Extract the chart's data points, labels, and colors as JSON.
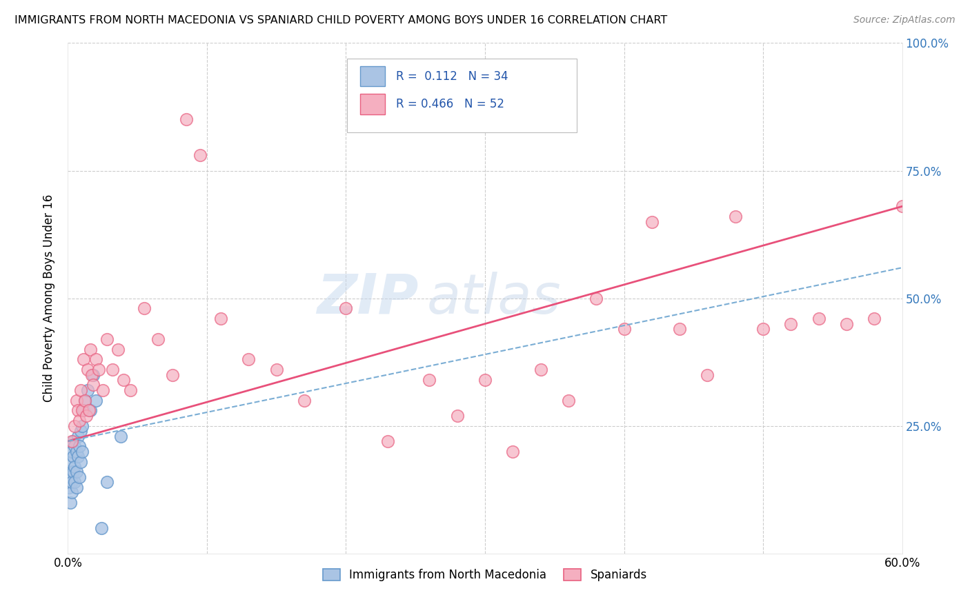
{
  "title": "IMMIGRANTS FROM NORTH MACEDONIA VS SPANIARD CHILD POVERTY AMONG BOYS UNDER 16 CORRELATION CHART",
  "source": "Source: ZipAtlas.com",
  "ylabel": "Child Poverty Among Boys Under 16",
  "xlim": [
    0.0,
    0.6
  ],
  "ylim": [
    0.0,
    1.0
  ],
  "xtick_positions": [
    0.0,
    0.1,
    0.2,
    0.3,
    0.4,
    0.5,
    0.6
  ],
  "xticklabels": [
    "0.0%",
    "",
    "",
    "",
    "",
    "",
    "60.0%"
  ],
  "ytick_positions": [
    0.0,
    0.25,
    0.5,
    0.75,
    1.0
  ],
  "yticklabels_right": [
    "",
    "25.0%",
    "50.0%",
    "75.0%",
    "100.0%"
  ],
  "r1": 0.112,
  "n1": 34,
  "r2": 0.466,
  "n2": 52,
  "color1_fill": "#aac4e4",
  "color1_edge": "#6699cc",
  "color2_fill": "#f5afc0",
  "color2_edge": "#e86080",
  "line1_color": "#7aadd4",
  "line2_color": "#e8507a",
  "watermark": "ZIPatlas",
  "legend_label1": "Immigrants from North Macedonia",
  "legend_label2": "Spaniards",
  "scatter1_x": [
    0.001,
    0.001,
    0.002,
    0.002,
    0.002,
    0.003,
    0.003,
    0.003,
    0.004,
    0.004,
    0.004,
    0.005,
    0.005,
    0.005,
    0.006,
    0.006,
    0.006,
    0.007,
    0.007,
    0.008,
    0.008,
    0.009,
    0.009,
    0.01,
    0.01,
    0.011,
    0.012,
    0.014,
    0.016,
    0.018,
    0.02,
    0.024,
    0.028,
    0.038
  ],
  "scatter1_y": [
    0.13,
    0.16,
    0.1,
    0.15,
    0.18,
    0.12,
    0.14,
    0.2,
    0.16,
    0.19,
    0.22,
    0.14,
    0.17,
    0.21,
    0.13,
    0.16,
    0.2,
    0.19,
    0.23,
    0.15,
    0.21,
    0.18,
    0.24,
    0.2,
    0.25,
    0.28,
    0.3,
    0.32,
    0.28,
    0.35,
    0.3,
    0.05,
    0.14,
    0.23
  ],
  "scatter2_x": [
    0.003,
    0.005,
    0.006,
    0.007,
    0.008,
    0.009,
    0.01,
    0.011,
    0.012,
    0.013,
    0.014,
    0.015,
    0.016,
    0.017,
    0.018,
    0.02,
    0.022,
    0.025,
    0.028,
    0.032,
    0.036,
    0.04,
    0.045,
    0.055,
    0.065,
    0.075,
    0.085,
    0.095,
    0.11,
    0.13,
    0.15,
    0.17,
    0.2,
    0.23,
    0.26,
    0.3,
    0.34,
    0.38,
    0.42,
    0.46,
    0.5,
    0.52,
    0.54,
    0.56,
    0.58,
    0.6,
    0.48,
    0.44,
    0.4,
    0.36,
    0.32,
    0.28
  ],
  "scatter2_y": [
    0.22,
    0.25,
    0.3,
    0.28,
    0.26,
    0.32,
    0.28,
    0.38,
    0.3,
    0.27,
    0.36,
    0.28,
    0.4,
    0.35,
    0.33,
    0.38,
    0.36,
    0.32,
    0.42,
    0.36,
    0.4,
    0.34,
    0.32,
    0.48,
    0.42,
    0.35,
    0.85,
    0.78,
    0.46,
    0.38,
    0.36,
    0.3,
    0.48,
    0.22,
    0.34,
    0.34,
    0.36,
    0.5,
    0.65,
    0.35,
    0.44,
    0.45,
    0.46,
    0.45,
    0.46,
    0.68,
    0.66,
    0.44,
    0.44,
    0.3,
    0.2,
    0.27
  ]
}
